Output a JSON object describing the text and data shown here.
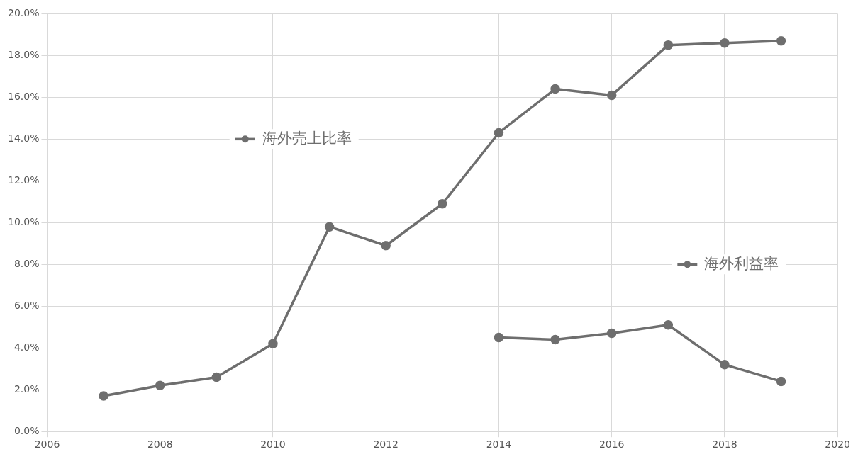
{
  "chart_data": {
    "type": "line",
    "x": [
      2007,
      2008,
      2009,
      2010,
      2011,
      2012,
      2013,
      2014,
      2015,
      2016,
      2017,
      2018,
      2019
    ],
    "series": [
      {
        "name": "海外売上比率",
        "color": "#6e6e6e",
        "values": [
          1.7,
          2.2,
          2.6,
          4.2,
          9.8,
          8.9,
          10.9,
          14.3,
          16.4,
          16.1,
          18.5,
          18.6,
          18.7
        ]
      },
      {
        "name": "海外利益率",
        "color": "#6e6e6e",
        "x": [
          2014,
          2015,
          2016,
          2017,
          2018,
          2019
        ],
        "values": [
          4.5,
          4.4,
          4.7,
          5.1,
          3.2,
          2.4
        ]
      }
    ],
    "xlim": [
      2006,
      2020
    ],
    "xticks": [
      2006,
      2008,
      2010,
      2012,
      2014,
      2016,
      2018,
      2020
    ],
    "ylim": [
      0,
      20
    ],
    "yticks": [
      {
        "value": 0,
        "label": "0.0%"
      },
      {
        "value": 2,
        "label": "2.0%"
      },
      {
        "value": 4,
        "label": "4.0%"
      },
      {
        "value": 6,
        "label": "6.0%"
      },
      {
        "value": 8,
        "label": "8.0%"
      },
      {
        "value": 10,
        "label": "10.0%"
      },
      {
        "value": 12,
        "label": "12.0%"
      },
      {
        "value": 14,
        "label": "14.0%"
      },
      {
        "value": 16,
        "label": "16.0%"
      },
      {
        "value": 18,
        "label": "18.0%"
      },
      {
        "value": 20,
        "label": "20.0%"
      }
    ],
    "grid": true,
    "marker": "circle",
    "line_style": "solid",
    "legend": "center"
  }
}
